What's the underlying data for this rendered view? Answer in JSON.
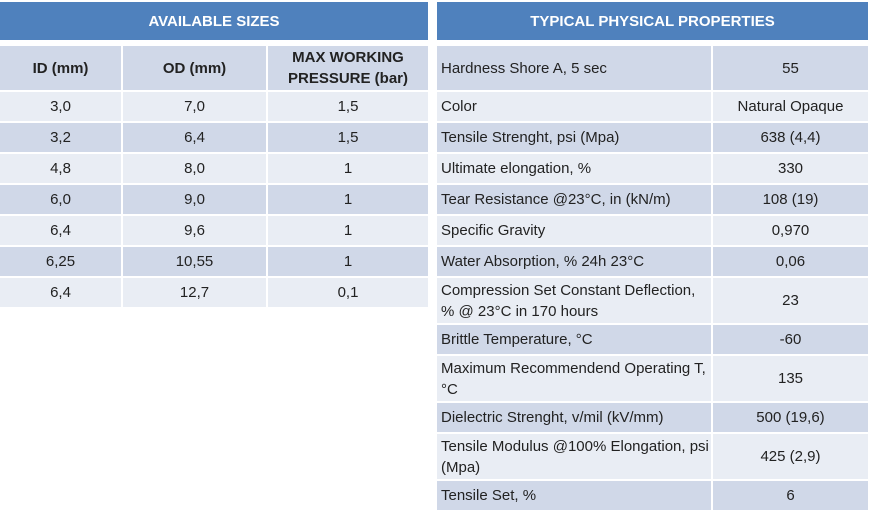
{
  "sizes": {
    "title": "AVAILABLE SIZES",
    "headers": [
      "ID (mm)",
      "OD (mm)",
      "MAX WORKING PRESSURE (bar)"
    ],
    "rows": [
      [
        "3,0",
        "7,0",
        "1,5"
      ],
      [
        "3,2",
        "6,4",
        "1,5"
      ],
      [
        "4,8",
        "8,0",
        "1"
      ],
      [
        "6,0",
        "9,0",
        "1"
      ],
      [
        "6,4",
        "9,6",
        "1"
      ],
      [
        "6,25",
        "10,55",
        "1"
      ],
      [
        "6,4",
        "12,7",
        "0,1"
      ]
    ]
  },
  "props": {
    "title": "TYPICAL PHYSICAL PROPERTIES",
    "rows": [
      [
        "Hardness Shore A, 5 sec",
        "55"
      ],
      [
        "Color",
        "Natural Opaque"
      ],
      [
        "Tensile Strenght, psi (Mpa)",
        "638 (4,4)"
      ],
      [
        "Ultimate elongation, %",
        "330"
      ],
      [
        "Tear Resistance @23°C, in (kN/m)",
        "108 (19)"
      ],
      [
        "Specific Gravity",
        "0,970"
      ],
      [
        "Water Absorption, % 24h 23°C",
        "0,06"
      ],
      [
        "Compression Set Constant Deflection, % @ 23°C in 170 hours",
        "23"
      ],
      [
        "Brittle Temperature, °C",
        "-60"
      ],
      [
        "Maximum Recommendend Operating T, °C",
        "135"
      ],
      [
        "Dielectric Strenght, v/mil (kV/mm)",
        "500 (19,6)"
      ],
      [
        "Tensile Modulus @100% Elongation, psi (Mpa)",
        "425 (2,9)"
      ],
      [
        "Tensile Set, %",
        "6"
      ]
    ]
  }
}
